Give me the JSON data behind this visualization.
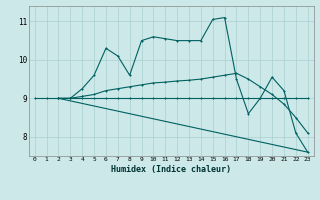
{
  "xlabel": "Humidex (Indice chaleur)",
  "bg_color": "#cce8e8",
  "grid_color": "#aacfcf",
  "line_color": "#006060",
  "xlim": [
    -0.5,
    23.5
  ],
  "ylim": [
    7.5,
    11.4
  ],
  "xticks": [
    0,
    1,
    2,
    3,
    4,
    5,
    6,
    7,
    8,
    9,
    10,
    11,
    12,
    13,
    14,
    15,
    16,
    17,
    18,
    19,
    20,
    21,
    22,
    23
  ],
  "yticks": [
    8,
    9,
    10,
    11
  ],
  "line1_x": [
    0,
    1,
    2,
    3,
    4,
    5,
    6,
    7,
    8,
    9,
    10,
    11,
    12,
    13,
    14,
    15,
    16,
    17,
    18,
    19,
    20,
    21,
    22,
    23
  ],
  "line1_y": [
    9,
    9,
    9,
    9,
    9,
    9,
    9,
    9,
    9,
    9,
    9,
    9,
    9,
    9,
    9,
    9,
    9,
    9,
    9,
    9,
    9,
    9,
    9,
    9
  ],
  "line2_x": [
    2,
    3,
    4,
    5,
    6,
    7,
    8,
    9,
    10,
    11,
    12,
    13,
    14,
    15,
    16,
    17,
    18,
    19,
    20,
    21,
    22,
    23
  ],
  "line2_y": [
    9,
    9,
    9.25,
    9.6,
    10.3,
    10.1,
    9.6,
    10.5,
    10.6,
    10.55,
    10.5,
    10.5,
    10.5,
    11.05,
    11.1,
    9.5,
    8.6,
    9.0,
    9.55,
    9.2,
    8.1,
    7.6
  ],
  "line3_x": [
    2,
    23
  ],
  "line3_y": [
    9,
    7.6
  ],
  "line4_x": [
    2,
    3,
    4,
    5,
    6,
    7,
    8,
    9,
    10,
    11,
    12,
    13,
    14,
    15,
    16,
    17,
    18,
    19,
    20,
    21,
    22,
    23
  ],
  "line4_y": [
    9,
    9,
    9.05,
    9.1,
    9.2,
    9.25,
    9.3,
    9.35,
    9.4,
    9.42,
    9.45,
    9.47,
    9.5,
    9.55,
    9.6,
    9.65,
    9.5,
    9.3,
    9.1,
    8.85,
    8.5,
    8.1
  ]
}
